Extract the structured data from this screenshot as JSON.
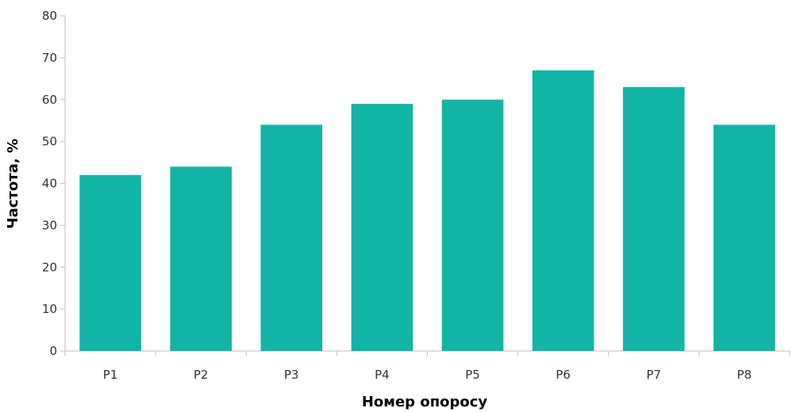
{
  "chart_data": {
    "type": "bar",
    "categories": [
      "P1",
      "P2",
      "P3",
      "P4",
      "P5",
      "P6",
      "P7",
      "P8"
    ],
    "values": [
      42,
      44,
      54,
      59,
      60,
      67,
      63,
      54
    ],
    "title": "",
    "xlabel": "Номер опоросу",
    "ylabel": "Частота, %",
    "ylim": [
      0,
      80
    ],
    "yticks": [
      "0",
      "10",
      "20",
      "30",
      "40",
      "50",
      "60",
      "70",
      "80"
    ],
    "grid": false,
    "legend": "none",
    "bar_color": "#12b5a5"
  }
}
